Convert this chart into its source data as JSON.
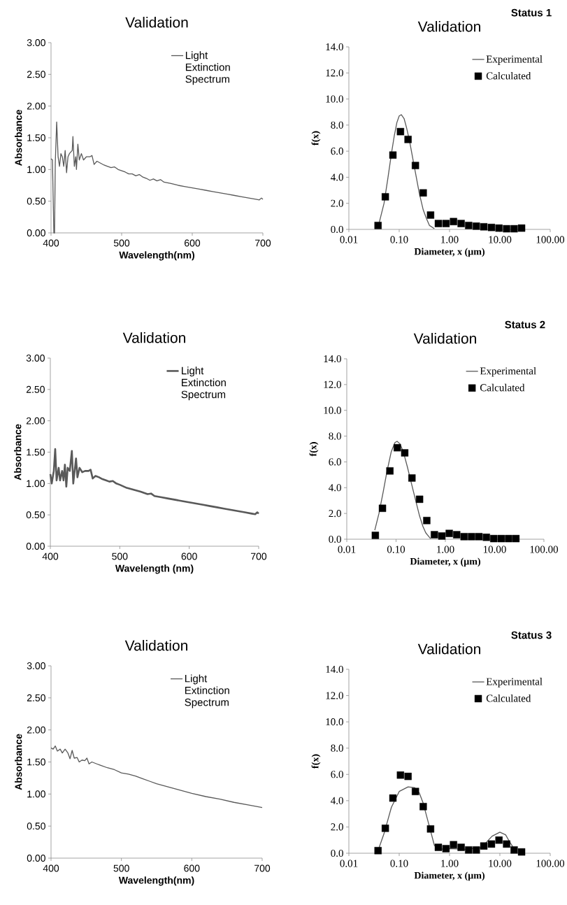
{
  "chart_data": [
    {
      "type": "line",
      "title": "Validation",
      "xlabel": "Wavelength(nm)",
      "ylabel": "Absorbance",
      "xlim": [
        400,
        700
      ],
      "ylim": [
        0,
        3
      ],
      "xticks": [
        400,
        500,
        600,
        700
      ],
      "yticks": [
        {
          "value": 0,
          "label": "0.00"
        },
        {
          "value": 0.5,
          "label": "0.50"
        },
        {
          "value": 1,
          "label": "1.00"
        },
        {
          "value": 1.5,
          "label": "1.50"
        },
        {
          "value": 2,
          "label": "2.00"
        },
        {
          "value": 2.5,
          "label": "2.50"
        },
        {
          "value": 3,
          "label": "3.00"
        }
      ],
      "legend": "top right",
      "x": [
        400,
        402,
        404,
        405,
        406,
        408,
        410,
        412,
        414,
        416,
        418,
        420,
        422,
        424,
        426,
        430,
        431,
        433,
        435,
        436,
        438,
        440,
        443,
        446,
        450,
        455,
        458,
        461,
        465,
        470,
        475,
        480,
        485,
        490,
        495,
        500,
        505,
        510,
        515,
        520,
        525,
        530,
        535,
        540,
        545,
        550,
        555,
        560,
        570,
        580,
        590,
        600,
        610,
        620,
        630,
        640,
        650,
        660,
        670,
        680,
        690,
        695,
        698,
        700
      ],
      "series": [
        {
          "name": "Light Extinction Spectrum",
          "color": "#595959",
          "values": [
            1.17,
            1.15,
            0,
            0,
            1.1,
            1.75,
            1.2,
            1.05,
            1.25,
            1.2,
            1.05,
            1.3,
            0.95,
            1.2,
            1.25,
            1.3,
            1.52,
            1.05,
            1.2,
            1.0,
            1.4,
            1.15,
            1.25,
            1.15,
            1.2,
            1.2,
            1.22,
            1.08,
            1.13,
            1.1,
            1.07,
            1.05,
            1.03,
            1.04,
            1.0,
            0.98,
            0.96,
            0.93,
            0.93,
            0.9,
            0.92,
            0.88,
            0.86,
            0.83,
            0.85,
            0.82,
            0.84,
            0.8,
            0.78,
            0.75,
            0.73,
            0.71,
            0.69,
            0.67,
            0.65,
            0.63,
            0.61,
            0.59,
            0.57,
            0.55,
            0.53,
            0.52,
            0.55,
            0.53
          ]
        }
      ]
    },
    {
      "type": "line",
      "title": "Validation",
      "annotations": [
        "Status 1"
      ],
      "xlabel": "Diameter, x (µm)",
      "ylabel": "f(x)",
      "log": "x",
      "xlim": [
        0.01,
        100
      ],
      "ylim": [
        0,
        14
      ],
      "xticks": [
        {
          "value": 0.01,
          "label": "0.01"
        },
        {
          "value": 0.1,
          "label": "0.10"
        },
        {
          "value": 1,
          "label": "1.00"
        },
        {
          "value": 10,
          "label": "10.00"
        },
        {
          "value": 100,
          "label": "100.00"
        }
      ],
      "yticks": [
        {
          "value": 0,
          "label": "0.0"
        },
        {
          "value": 2,
          "label": "2.0"
        },
        {
          "value": 4,
          "label": "4.0"
        },
        {
          "value": 6,
          "label": "6.0"
        },
        {
          "value": 8,
          "label": "8.0"
        },
        {
          "value": 10,
          "label": "10.0"
        },
        {
          "value": 12,
          "label": "12.0"
        },
        {
          "value": 14,
          "label": "14.0"
        }
      ],
      "legend": "top right",
      "series": [
        {
          "name": "Experimental",
          "type": "line",
          "color": "#595959",
          "x": [
            0.04,
            0.05,
            0.06,
            0.07,
            0.08,
            0.09,
            0.1,
            0.11,
            0.125,
            0.14,
            0.16,
            0.2,
            0.25,
            0.3,
            0.35,
            0.4,
            0.5
          ],
          "values": [
            0.5,
            2.0,
            4.0,
            5.8,
            7.2,
            8.2,
            8.7,
            8.8,
            8.5,
            7.8,
            6.8,
            4.8,
            2.8,
            1.5,
            0.8,
            0.3,
            0.05
          ]
        },
        {
          "name": "Calculated",
          "type": "scatter",
          "marker": "square",
          "color": "#000000",
          "x": [
            0.038,
            0.053,
            0.075,
            0.106,
            0.15,
            0.21,
            0.3,
            0.42,
            0.6,
            0.85,
            1.2,
            1.7,
            2.4,
            3.4,
            4.8,
            6.8,
            9.6,
            13.6,
            19.2,
            27
          ],
          "values": [
            0.3,
            2.5,
            5.7,
            7.5,
            6.9,
            4.9,
            2.8,
            1.1,
            0.45,
            0.45,
            0.6,
            0.45,
            0.3,
            0.25,
            0.2,
            0.15,
            0.1,
            0.05,
            0.05,
            0.1
          ]
        }
      ]
    },
    {
      "type": "line",
      "title": "Validation",
      "xlabel": "Wavelength (nm)",
      "ylabel": "Absorbance",
      "xlim": [
        400,
        700
      ],
      "ylim": [
        0,
        3
      ],
      "xticks": [
        400,
        500,
        600,
        700
      ],
      "yticks": [
        {
          "value": 0,
          "label": "0.00"
        },
        {
          "value": 0.5,
          "label": "0.50"
        },
        {
          "value": 1,
          "label": "1.00"
        },
        {
          "value": 1.5,
          "label": "1.50"
        },
        {
          "value": 2,
          "label": "2.00"
        },
        {
          "value": 2.5,
          "label": "2.50"
        },
        {
          "value": 3,
          "label": "3.00"
        }
      ],
      "legend": "top right",
      "x": [
        400,
        402,
        405,
        407,
        409,
        412,
        414,
        417,
        419,
        421,
        423,
        425,
        428,
        431,
        433,
        435,
        437,
        439,
        442,
        446,
        450,
        455,
        458,
        461,
        465,
        470,
        475,
        480,
        485,
        490,
        495,
        500,
        510,
        520,
        530,
        540,
        545,
        550,
        560,
        570,
        580,
        590,
        600,
        610,
        620,
        630,
        640,
        650,
        660,
        670,
        680,
        690,
        695,
        698,
        700
      ],
      "series": [
        {
          "name": "Light Extinction Spectrum",
          "color": "#595959",
          "values": [
            1.15,
            1.0,
            1.2,
            1.55,
            1.05,
            1.25,
            1.05,
            1.2,
            1.05,
            1.3,
            0.95,
            1.25,
            1.2,
            1.52,
            1.0,
            1.2,
            1.4,
            1.1,
            1.25,
            1.18,
            1.2,
            1.2,
            1.22,
            1.08,
            1.12,
            1.1,
            1.07,
            1.05,
            1.03,
            1.04,
            1.0,
            0.98,
            0.93,
            0.9,
            0.87,
            0.83,
            0.84,
            0.8,
            0.78,
            0.76,
            0.74,
            0.72,
            0.7,
            0.68,
            0.66,
            0.64,
            0.62,
            0.6,
            0.58,
            0.56,
            0.54,
            0.52,
            0.51,
            0.54,
            0.52
          ]
        }
      ]
    },
    {
      "type": "line",
      "title": "Validation",
      "annotations": [
        "Status 2"
      ],
      "xlabel": "Diameter, x (µm)",
      "ylabel": "f(x)",
      "log": "x",
      "xlim": [
        0.01,
        100
      ],
      "ylim": [
        0,
        14
      ],
      "xticks": [
        {
          "value": 0.01,
          "label": "0.01"
        },
        {
          "value": 0.1,
          "label": "0.10"
        },
        {
          "value": 1,
          "label": "1.00"
        },
        {
          "value": 10,
          "label": "10.00"
        },
        {
          "value": 100,
          "label": "100.00"
        }
      ],
      "yticks": [
        {
          "value": 0,
          "label": "0.0"
        },
        {
          "value": 2,
          "label": "2.0"
        },
        {
          "value": 4,
          "label": "4.0"
        },
        {
          "value": 6,
          "label": "6.0"
        },
        {
          "value": 8,
          "label": "8.0"
        },
        {
          "value": 10,
          "label": "10.0"
        },
        {
          "value": 12,
          "label": "12.0"
        },
        {
          "value": 14,
          "label": "14.0"
        }
      ],
      "legend": "top right",
      "series": [
        {
          "name": "Experimental",
          "type": "line",
          "color": "#595959",
          "x": [
            0.037,
            0.045,
            0.055,
            0.065,
            0.08,
            0.095,
            0.105,
            0.12,
            0.14,
            0.17,
            0.2,
            0.25,
            0.3,
            0.35,
            0.4,
            0.5
          ],
          "values": [
            0.7,
            2.0,
            3.7,
            5.2,
            6.8,
            7.5,
            7.6,
            7.4,
            6.8,
            5.6,
            4.5,
            3.0,
            1.8,
            1.0,
            0.5,
            0.05
          ]
        },
        {
          "name": "Calculated",
          "type": "scatter",
          "marker": "square",
          "color": "#000000",
          "x": [
            0.038,
            0.053,
            0.075,
            0.106,
            0.15,
            0.21,
            0.3,
            0.42,
            0.6,
            0.85,
            1.2,
            1.7,
            2.4,
            3.4,
            4.8,
            6.8,
            9.6,
            13.6,
            19.2,
            27
          ],
          "values": [
            0.3,
            2.4,
            5.3,
            7.1,
            6.7,
            4.75,
            3.1,
            1.45,
            0.35,
            0.25,
            0.45,
            0.35,
            0.2,
            0.2,
            0.2,
            0.15,
            0.05,
            0.05,
            0.05,
            0.05
          ]
        }
      ]
    },
    {
      "type": "line",
      "title": "Validation",
      "xlabel": "Wavelength(nm)",
      "ylabel": "Absorbance",
      "xlim": [
        400,
        700
      ],
      "ylim": [
        0,
        3
      ],
      "xticks": [
        400,
        500,
        600,
        700
      ],
      "yticks": [
        {
          "value": 0,
          "label": "0.00"
        },
        {
          "value": 0.5,
          "label": "0.50"
        },
        {
          "value": 1,
          "label": "1.00"
        },
        {
          "value": 1.5,
          "label": "1.50"
        },
        {
          "value": 2,
          "label": "2.00"
        },
        {
          "value": 2.5,
          "label": "2.50"
        },
        {
          "value": 3,
          "label": "3.00"
        }
      ],
      "legend": "top right",
      "x": [
        400,
        403,
        406,
        409,
        413,
        416,
        420,
        424,
        427,
        430,
        433,
        437,
        440,
        444,
        448,
        451,
        454,
        458,
        465,
        470,
        480,
        490,
        500,
        510,
        520,
        530,
        540,
        550,
        560,
        570,
        580,
        590,
        600,
        620,
        640,
        660,
        680,
        700
      ],
      "series": [
        {
          "name": "Light Extinction Spectrum",
          "color": "#595959",
          "values": [
            1.72,
            1.7,
            1.75,
            1.67,
            1.7,
            1.64,
            1.7,
            1.64,
            1.55,
            1.68,
            1.56,
            1.57,
            1.5,
            1.53,
            1.52,
            1.56,
            1.47,
            1.5,
            1.47,
            1.45,
            1.41,
            1.38,
            1.33,
            1.31,
            1.28,
            1.24,
            1.2,
            1.16,
            1.13,
            1.1,
            1.07,
            1.04,
            1.01,
            0.96,
            0.92,
            0.87,
            0.83,
            0.79
          ]
        }
      ]
    },
    {
      "type": "line",
      "title": "Validation",
      "annotations": [
        "Status 3"
      ],
      "xlabel": "Diameter, x (µm)",
      "ylabel": "f(x)",
      "log": "x",
      "xlim": [
        0.01,
        100
      ],
      "ylim": [
        0,
        14
      ],
      "xticks": [
        {
          "value": 0.01,
          "label": "0.01"
        },
        {
          "value": 0.1,
          "label": "0.10"
        },
        {
          "value": 1,
          "label": "1.00"
        },
        {
          "value": 10,
          "label": "10.00"
        },
        {
          "value": 100,
          "label": "100.00"
        }
      ],
      "yticks": [
        {
          "value": 0,
          "label": "0.0"
        },
        {
          "value": 2,
          "label": "2.0"
        },
        {
          "value": 4,
          "label": "4.0"
        },
        {
          "value": 6,
          "label": "6.0"
        },
        {
          "value": 8,
          "label": "8.0"
        },
        {
          "value": 10,
          "label": "10.0"
        },
        {
          "value": 12,
          "label": "12.0"
        },
        {
          "value": 14,
          "label": "14.0"
        }
      ],
      "legend": "top right",
      "series": [
        {
          "name": "Experimental",
          "type": "line",
          "color": "#595959",
          "x": [
            0.038,
            0.05,
            0.07,
            0.1,
            0.15,
            0.2,
            0.25,
            0.3,
            0.4,
            0.5,
            0.6,
            1,
            2,
            4,
            5,
            7,
            10,
            13,
            16,
            18
          ],
          "values": [
            0.2,
            1.5,
            3.5,
            4.7,
            5.05,
            5.0,
            4.6,
            3.8,
            2.0,
            0.6,
            0.3,
            0.35,
            0.3,
            0.4,
            0.7,
            1.3,
            1.6,
            1.4,
            0.8,
            0.5
          ]
        },
        {
          "name": "Calculated",
          "type": "scatter",
          "marker": "square",
          "color": "#000000",
          "x": [
            0.038,
            0.053,
            0.075,
            0.106,
            0.15,
            0.21,
            0.3,
            0.42,
            0.6,
            0.85,
            1.2,
            1.7,
            2.4,
            3.4,
            4.8,
            6.8,
            9.6,
            13.6,
            19.2,
            27
          ],
          "values": [
            0.2,
            1.9,
            4.2,
            5.95,
            5.85,
            4.7,
            3.55,
            1.85,
            0.45,
            0.35,
            0.65,
            0.45,
            0.25,
            0.25,
            0.55,
            0.7,
            1.0,
            0.7,
            0.25,
            0.1
          ]
        }
      ]
    }
  ]
}
